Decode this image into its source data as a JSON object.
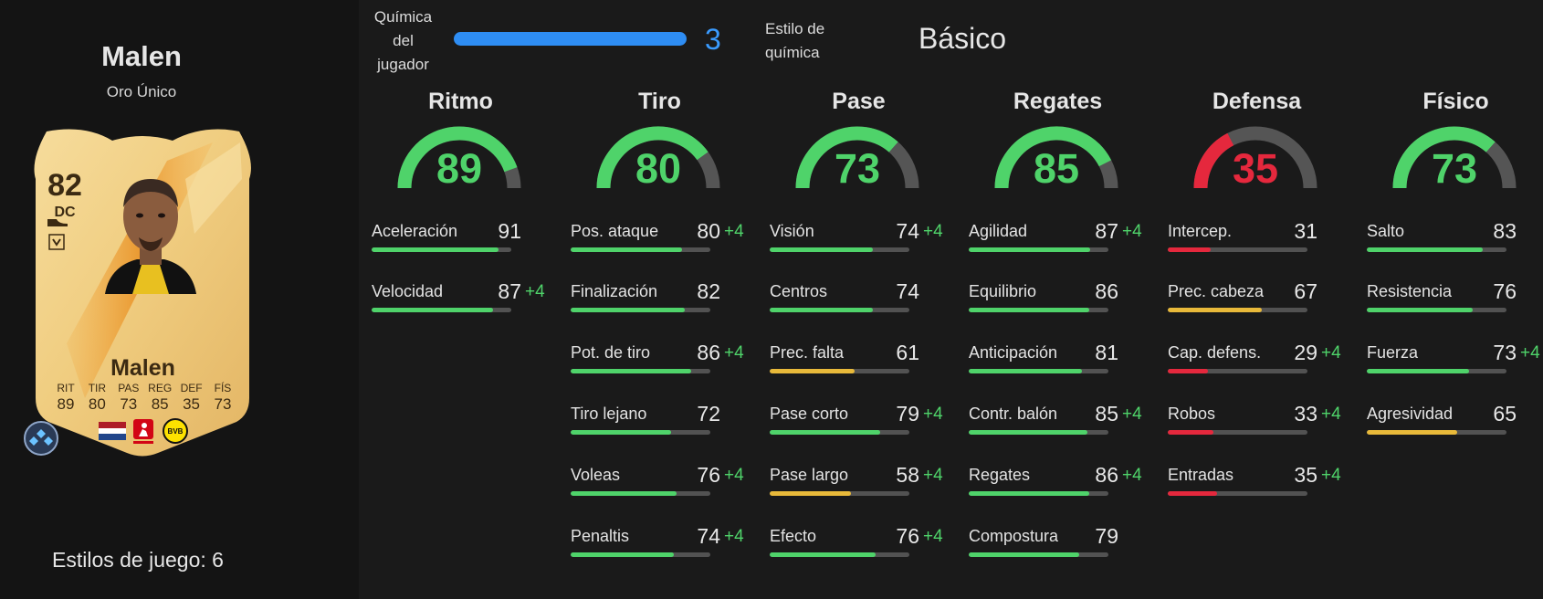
{
  "player": {
    "name": "Malen",
    "rarity": "Oro Único",
    "card": {
      "rating": "82",
      "position": "DC",
      "name": "Malen",
      "stats": [
        {
          "label": "RIT",
          "value": "89"
        },
        {
          "label": "TIR",
          "value": "80"
        },
        {
          "label": "PAS",
          "value": "73"
        },
        {
          "label": "REG",
          "value": "85"
        },
        {
          "label": "DEF",
          "value": "35"
        },
        {
          "label": "FÍS",
          "value": "73"
        }
      ]
    },
    "playstyles": "Estilos de juego: 6"
  },
  "chemistry": {
    "label_lines": [
      "Química",
      "del",
      "jugador"
    ],
    "value": "3",
    "style_label_lines": [
      "Estilo de",
      "química"
    ],
    "style_value": "Básico"
  },
  "colors": {
    "green": "#4fd36a",
    "yellow": "#e8b93a",
    "red": "#e5283d",
    "track": "#525252",
    "chem_blue": "#2e8df3"
  },
  "columns": [
    {
      "title": "Ritmo",
      "value": 89,
      "tier": "green",
      "attributes": [
        {
          "name": "Aceleración",
          "value": 91,
          "boost": "",
          "tier": "green"
        },
        {
          "name": "Velocidad",
          "value": 87,
          "boost": "+4",
          "tier": "green"
        }
      ]
    },
    {
      "title": "Tiro",
      "value": 80,
      "tier": "green",
      "attributes": [
        {
          "name": "Pos. ataque",
          "value": 80,
          "boost": "+4",
          "tier": "green"
        },
        {
          "name": "Finalización",
          "value": 82,
          "boost": "",
          "tier": "green"
        },
        {
          "name": "Pot. de tiro",
          "value": 86,
          "boost": "+4",
          "tier": "green"
        },
        {
          "name": "Tiro lejano",
          "value": 72,
          "boost": "",
          "tier": "green"
        },
        {
          "name": "Voleas",
          "value": 76,
          "boost": "+4",
          "tier": "green"
        },
        {
          "name": "Penaltis",
          "value": 74,
          "boost": "+4",
          "tier": "green"
        }
      ]
    },
    {
      "title": "Pase",
      "value": 73,
      "tier": "green",
      "attributes": [
        {
          "name": "Visión",
          "value": 74,
          "boost": "+4",
          "tier": "green"
        },
        {
          "name": "Centros",
          "value": 74,
          "boost": "",
          "tier": "green"
        },
        {
          "name": "Prec. falta",
          "value": 61,
          "boost": "",
          "tier": "yellow"
        },
        {
          "name": "Pase corto",
          "value": 79,
          "boost": "+4",
          "tier": "green"
        },
        {
          "name": "Pase largo",
          "value": 58,
          "boost": "+4",
          "tier": "yellow"
        },
        {
          "name": "Efecto",
          "value": 76,
          "boost": "+4",
          "tier": "green"
        }
      ]
    },
    {
      "title": "Regates",
      "value": 85,
      "tier": "green",
      "attributes": [
        {
          "name": "Agilidad",
          "value": 87,
          "boost": "+4",
          "tier": "green"
        },
        {
          "name": "Equilibrio",
          "value": 86,
          "boost": "",
          "tier": "green"
        },
        {
          "name": "Anticipación",
          "value": 81,
          "boost": "",
          "tier": "green"
        },
        {
          "name": "Contr. balón",
          "value": 85,
          "boost": "+4",
          "tier": "green"
        },
        {
          "name": "Regates",
          "value": 86,
          "boost": "+4",
          "tier": "green"
        },
        {
          "name": "Compostura",
          "value": 79,
          "boost": "",
          "tier": "green"
        }
      ]
    },
    {
      "title": "Defensa",
      "value": 35,
      "tier": "red",
      "attributes": [
        {
          "name": "Intercep.",
          "value": 31,
          "boost": "",
          "tier": "red"
        },
        {
          "name": "Prec. cabeza",
          "value": 67,
          "boost": "",
          "tier": "yellow"
        },
        {
          "name": "Cap. defens.",
          "value": 29,
          "boost": "+4",
          "tier": "red"
        },
        {
          "name": "Robos",
          "value": 33,
          "boost": "+4",
          "tier": "red"
        },
        {
          "name": "Entradas",
          "value": 35,
          "boost": "+4",
          "tier": "red"
        }
      ]
    },
    {
      "title": "Físico",
      "value": 73,
      "tier": "green",
      "attributes": [
        {
          "name": "Salto",
          "value": 83,
          "boost": "",
          "tier": "green"
        },
        {
          "name": "Resistencia",
          "value": 76,
          "boost": "",
          "tier": "green"
        },
        {
          "name": "Fuerza",
          "value": 73,
          "boost": "+4",
          "tier": "green"
        },
        {
          "name": "Agresividad",
          "value": 65,
          "boost": "",
          "tier": "yellow"
        }
      ]
    }
  ]
}
